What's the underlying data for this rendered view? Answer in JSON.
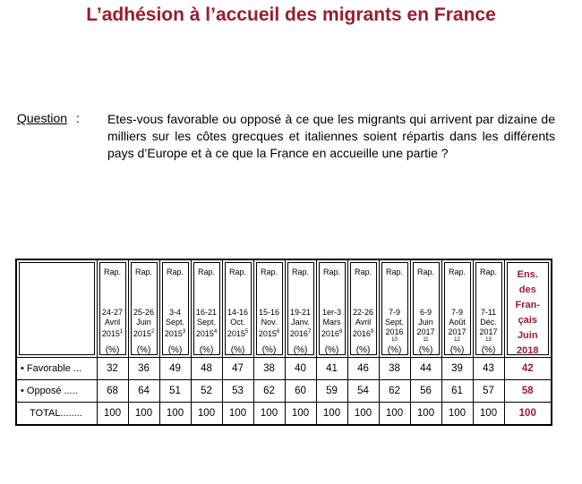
{
  "title": "L’adhésion à l’accueil des migrants en France",
  "question": {
    "label": "Question",
    "colon": ":",
    "text": "Etes-vous favorable ou opposé à ce que les migrants qui arrivent par dizaine de milliers sur les côtes grecques et italiennes soient répartis dans les différents pays d’Europe et à ce que la France en accueille une partie ?"
  },
  "table": {
    "columns": [
      {
        "rap": "Rap.",
        "date": "24-27 Avril 2015",
        "sup": "1",
        "note": "",
        "pct": "(%)"
      },
      {
        "rap": "Rap.",
        "date": "25-26 Juin 2015",
        "sup": "2",
        "note": "",
        "pct": "(%)"
      },
      {
        "rap": "Rap.",
        "date": "3-4 Sept. 2015",
        "sup": "3",
        "note": "",
        "pct": "(%)"
      },
      {
        "rap": "Rap.",
        "date": "16-21 Sept. 2015",
        "sup": "4",
        "note": "",
        "pct": "(%)"
      },
      {
        "rap": "Rap.",
        "date": "14-16 Oct. 2015",
        "sup": "5",
        "note": "",
        "pct": "(%)"
      },
      {
        "rap": "Rap.",
        "date": "15-16 Nov. 2015",
        "sup": "6",
        "note": "",
        "pct": "(%)"
      },
      {
        "rap": "Rap.",
        "date": "19-21 Janv. 2016",
        "sup": "7",
        "note": "",
        "pct": "(%)"
      },
      {
        "rap": "Rap.",
        "date": "1er-3 Mars 2016",
        "sup": "8",
        "note": "",
        "pct": "(%)"
      },
      {
        "rap": "Rap.",
        "date": "22-26 Avril 2016",
        "sup": "9",
        "note": "",
        "pct": "(%)"
      },
      {
        "rap": "Rap.",
        "date": "7-9 Sept. 2016",
        "sup": "",
        "note": "10",
        "pct": "(%)"
      },
      {
        "rap": "Rap.",
        "date": "6-9 Juin 2017",
        "sup": "",
        "note": "11",
        "pct": "(%)"
      },
      {
        "rap": "Rap.",
        "date": "7-9 Août 2017",
        "sup": "",
        "note": "12",
        "pct": "(%)"
      },
      {
        "rap": "Rap.",
        "date": "7-11 Déc. 2017",
        "sup": "",
        "note": "13",
        "pct": "(%)"
      }
    ],
    "last_column": {
      "label": "Ens. des Fran-çais Juin 2018",
      "pct": "(%)"
    },
    "rows": [
      {
        "label": "• Favorable ...",
        "values": [
          "32",
          "36",
          "49",
          "48",
          "47",
          "38",
          "40",
          "41",
          "46",
          "38",
          "44",
          "39",
          "43"
        ],
        "last": "42"
      },
      {
        "label": "• Opposé .....",
        "values": [
          "68",
          "64",
          "51",
          "52",
          "53",
          "62",
          "60",
          "59",
          "54",
          "62",
          "56",
          "61",
          "57"
        ],
        "last": "58"
      },
      {
        "label": "TOTAL........",
        "values": [
          "100",
          "100",
          "100",
          "100",
          "100",
          "100",
          "100",
          "100",
          "100",
          "100",
          "100",
          "100",
          "100"
        ],
        "last": "100"
      }
    ]
  }
}
